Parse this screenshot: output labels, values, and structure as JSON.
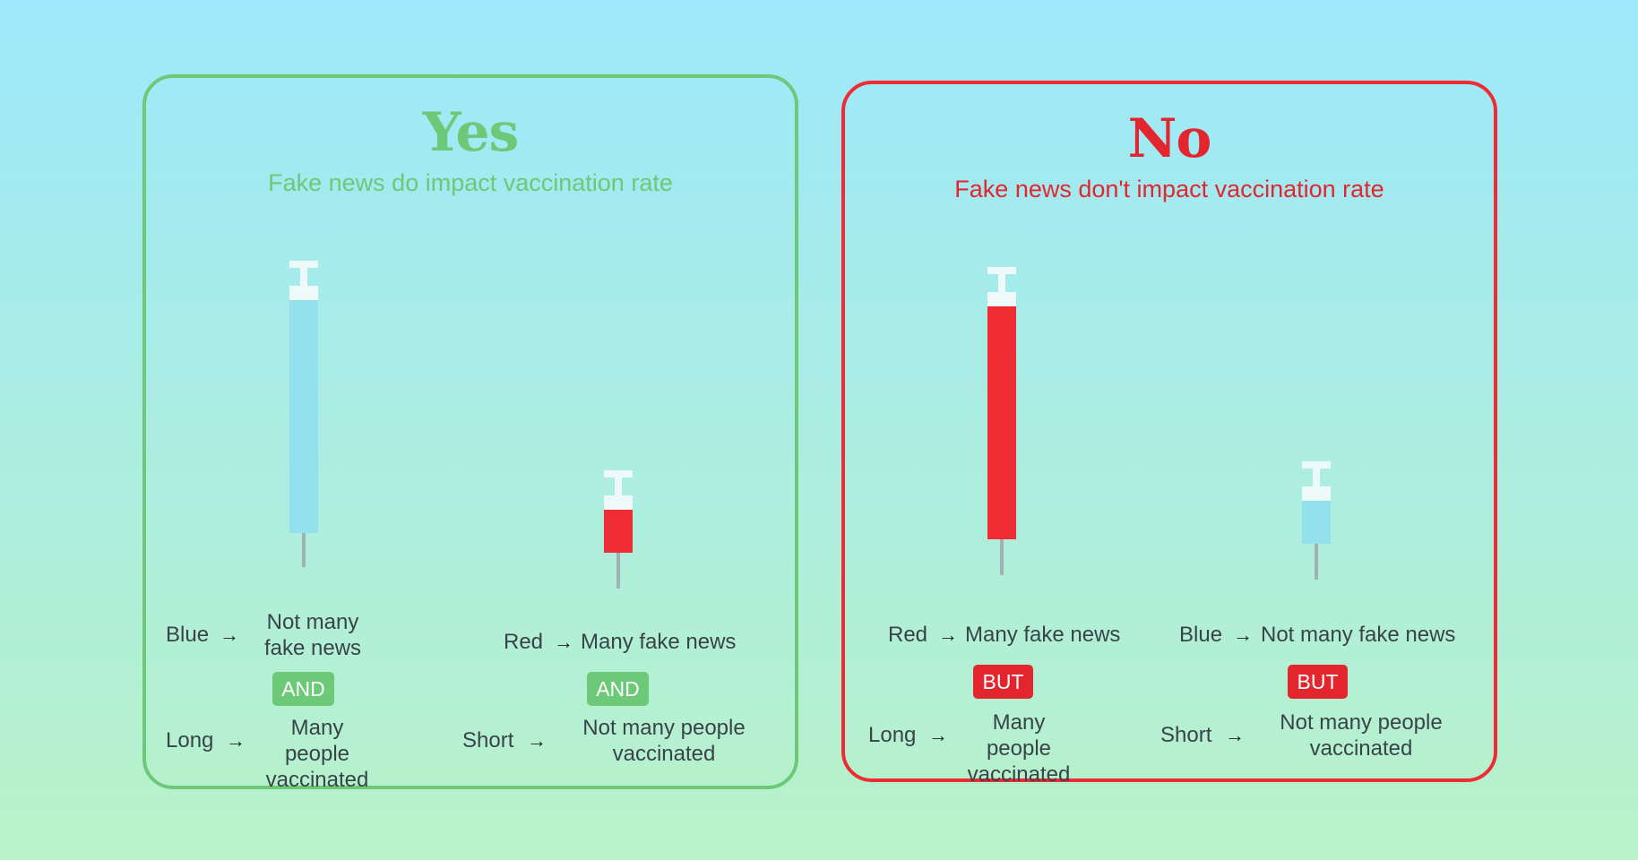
{
  "colors": {
    "yes": "#6cc978",
    "no": "#e3262e",
    "blue_syringe": "#93e1ef",
    "red_syringe": "#ef2c33"
  },
  "yes_panel": {
    "title": "Yes",
    "subtitle": "Fake news do impact vaccination rate",
    "left": {
      "syringe_color": "blue",
      "syringe_fill_level": 1.0,
      "color_label": "Blue",
      "color_meaning": "Not many fake news",
      "connector": "AND",
      "length_label": "Long",
      "length_meaning": "Many people vaccinated"
    },
    "right": {
      "syringe_color": "red",
      "syringe_fill_level": 0.18,
      "color_label": "Red",
      "color_meaning": "Many fake news",
      "connector": "AND",
      "length_label": "Short",
      "length_meaning": "Not many people vaccinated"
    }
  },
  "no_panel": {
    "title": "No",
    "subtitle": "Fake news don't impact vaccination rate",
    "left": {
      "syringe_color": "red",
      "syringe_fill_level": 1.0,
      "color_label": "Red",
      "color_meaning": "Many fake news",
      "connector": "BUT",
      "length_label": "Long",
      "length_meaning": "Many people vaccinated"
    },
    "right": {
      "syringe_color": "blue",
      "syringe_fill_level": 0.18,
      "color_label": "Blue",
      "color_meaning": "Not many fake news",
      "connector": "BUT",
      "length_label": "Short",
      "length_meaning": "Not many people vaccinated"
    }
  },
  "icons": {
    "arrow": "arrow-right-icon",
    "syringe": "syringe-icon"
  },
  "arrow_glyph": "→"
}
